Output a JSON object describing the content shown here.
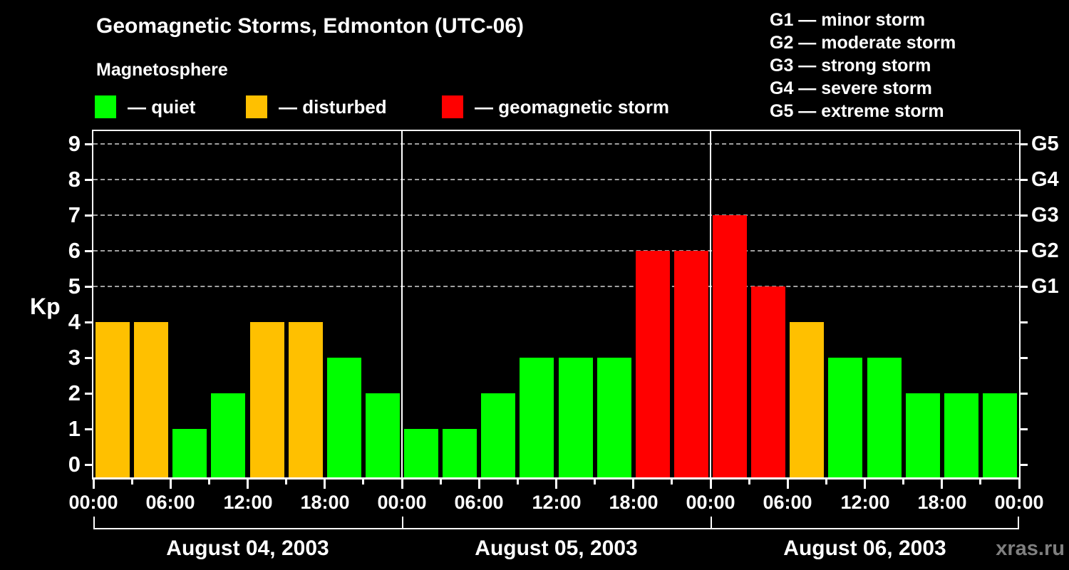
{
  "header": {
    "title": "Geomagnetic Storms, Edmonton (UTC-06)",
    "subtitle": "Magnetosphere",
    "legend": [
      {
        "key": "quiet",
        "label": "— quiet",
        "color": "#00ff00"
      },
      {
        "key": "disturbed",
        "label": "— disturbed",
        "color": "#ffc000"
      },
      {
        "key": "storm",
        "label": "— geomagnetic storm",
        "color": "#ff0000"
      }
    ],
    "g_legend": [
      "G1 — minor storm",
      "G2 — moderate storm",
      "G3 — strong storm",
      "G4 — severe storm",
      "G5 — extreme storm"
    ]
  },
  "axis": {
    "kp_label": "Kp"
  },
  "watermark": "xras.ru",
  "chart_data": {
    "type": "bar",
    "title": "Geomagnetic Storms, Edmonton (UTC-06)",
    "subtitle": "Magnetosphere",
    "ylabel": "Kp",
    "ylim": [
      0,
      9
    ],
    "y_ticks": [
      0,
      1,
      2,
      3,
      4,
      5,
      6,
      7,
      8,
      9
    ],
    "gridlines_at": [
      5,
      6,
      7,
      8,
      9
    ],
    "grid_style": "horizontal dashed gray at Kp 5-9 only",
    "legend_position": "top-left",
    "hours_per_bar": 3,
    "x_tick_labels": [
      "00:00",
      "06:00",
      "12:00",
      "18:00",
      "00:00",
      "06:00",
      "12:00",
      "18:00",
      "00:00",
      "06:00",
      "12:00",
      "18:00",
      "00:00"
    ],
    "days": [
      {
        "date": "August 04, 2003",
        "values": [
          4,
          4,
          1,
          2,
          4,
          4,
          3,
          2
        ]
      },
      {
        "date": "August 05, 2003",
        "values": [
          1,
          1,
          2,
          3,
          3,
          3,
          6,
          6
        ]
      },
      {
        "date": "August 06, 2003",
        "values": [
          7,
          5,
          4,
          3,
          3,
          2,
          2,
          2
        ]
      }
    ],
    "g_scale": [
      {
        "kp": 5,
        "label": "G1"
      },
      {
        "kp": 6,
        "label": "G2"
      },
      {
        "kp": 7,
        "label": "G3"
      },
      {
        "kp": 8,
        "label": "G4"
      },
      {
        "kp": 9,
        "label": "G5"
      }
    ],
    "colors": {
      "quiet": "#00ff00",
      "disturbed": "#ffc000",
      "storm": "#ff0000"
    },
    "color_rule": {
      "disturbed_min_kp": 4,
      "storm_min_kp": 5
    }
  }
}
